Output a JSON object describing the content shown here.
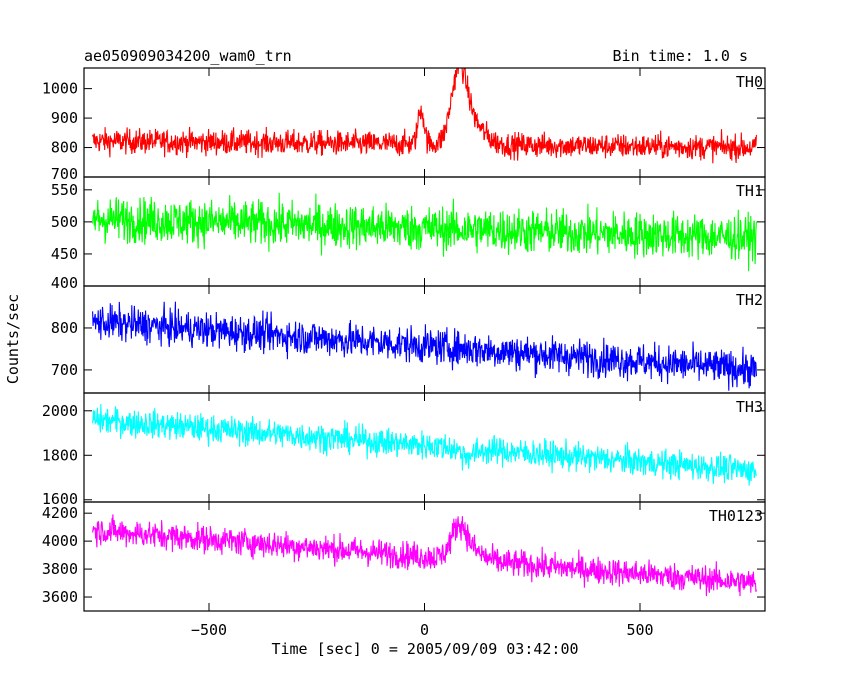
{
  "header": {
    "left_title": "ae050909034200_wam0_trn",
    "right_title": "Bin time: 1.0 s"
  },
  "chart_data": {
    "type": "line",
    "xlabel": "Time [sec] 0 = 2005/09/09 03:42:00",
    "ylabel": "Counts/sec",
    "xlim": [
      -790,
      790
    ],
    "x_ticks": [
      -500,
      0,
      500
    ],
    "x_range_data": [
      -770,
      770
    ],
    "x_step": 1.0,
    "panels": [
      {
        "name": "TH0",
        "color": "#ff0000",
        "ylim": [
          700,
          1070
        ],
        "y_ticks": [
          700,
          800,
          900,
          1000
        ],
        "baseline_start": 822,
        "baseline_end": 800,
        "noise_amplitude": 30,
        "features": [
          {
            "center": -8,
            "width": 10,
            "height": 120
          },
          {
            "center": 80,
            "width": 25,
            "height": 230
          },
          {
            "center": 110,
            "width": 40,
            "height": 70
          }
        ]
      },
      {
        "name": "TH1",
        "color": "#00ff00",
        "ylim": [
          400,
          570
        ],
        "y_ticks": [
          400,
          450,
          500,
          550
        ],
        "baseline_start": 505,
        "baseline_end": 475,
        "noise_amplitude": 25,
        "features": []
      },
      {
        "name": "TH2",
        "color": "#0000ff",
        "ylim": [
          645,
          900
        ],
        "y_ticks": [
          700,
          800
        ],
        "baseline_start": 815,
        "baseline_end": 700,
        "noise_amplitude": 30,
        "features": []
      },
      {
        "name": "TH3",
        "color": "#00ffff",
        "ylim": [
          1590,
          2080
        ],
        "y_ticks": [
          1600,
          1800,
          2000
        ],
        "baseline_start": 1960,
        "baseline_end": 1730,
        "noise_amplitude": 45,
        "features": [
          {
            "center": 100,
            "width": 25,
            "height": -30
          }
        ]
      },
      {
        "name": "TH0123",
        "color": "#ff00ff",
        "ylim": [
          3500,
          4280
        ],
        "y_ticks": [
          3600,
          3800,
          4000,
          4200
        ],
        "baseline_start": 4080,
        "baseline_end": 3700,
        "noise_amplitude": 70,
        "features": [
          {
            "center": 80,
            "width": 25,
            "height": 220
          },
          {
            "center": 110,
            "width": 40,
            "height": 60
          }
        ]
      }
    ]
  }
}
